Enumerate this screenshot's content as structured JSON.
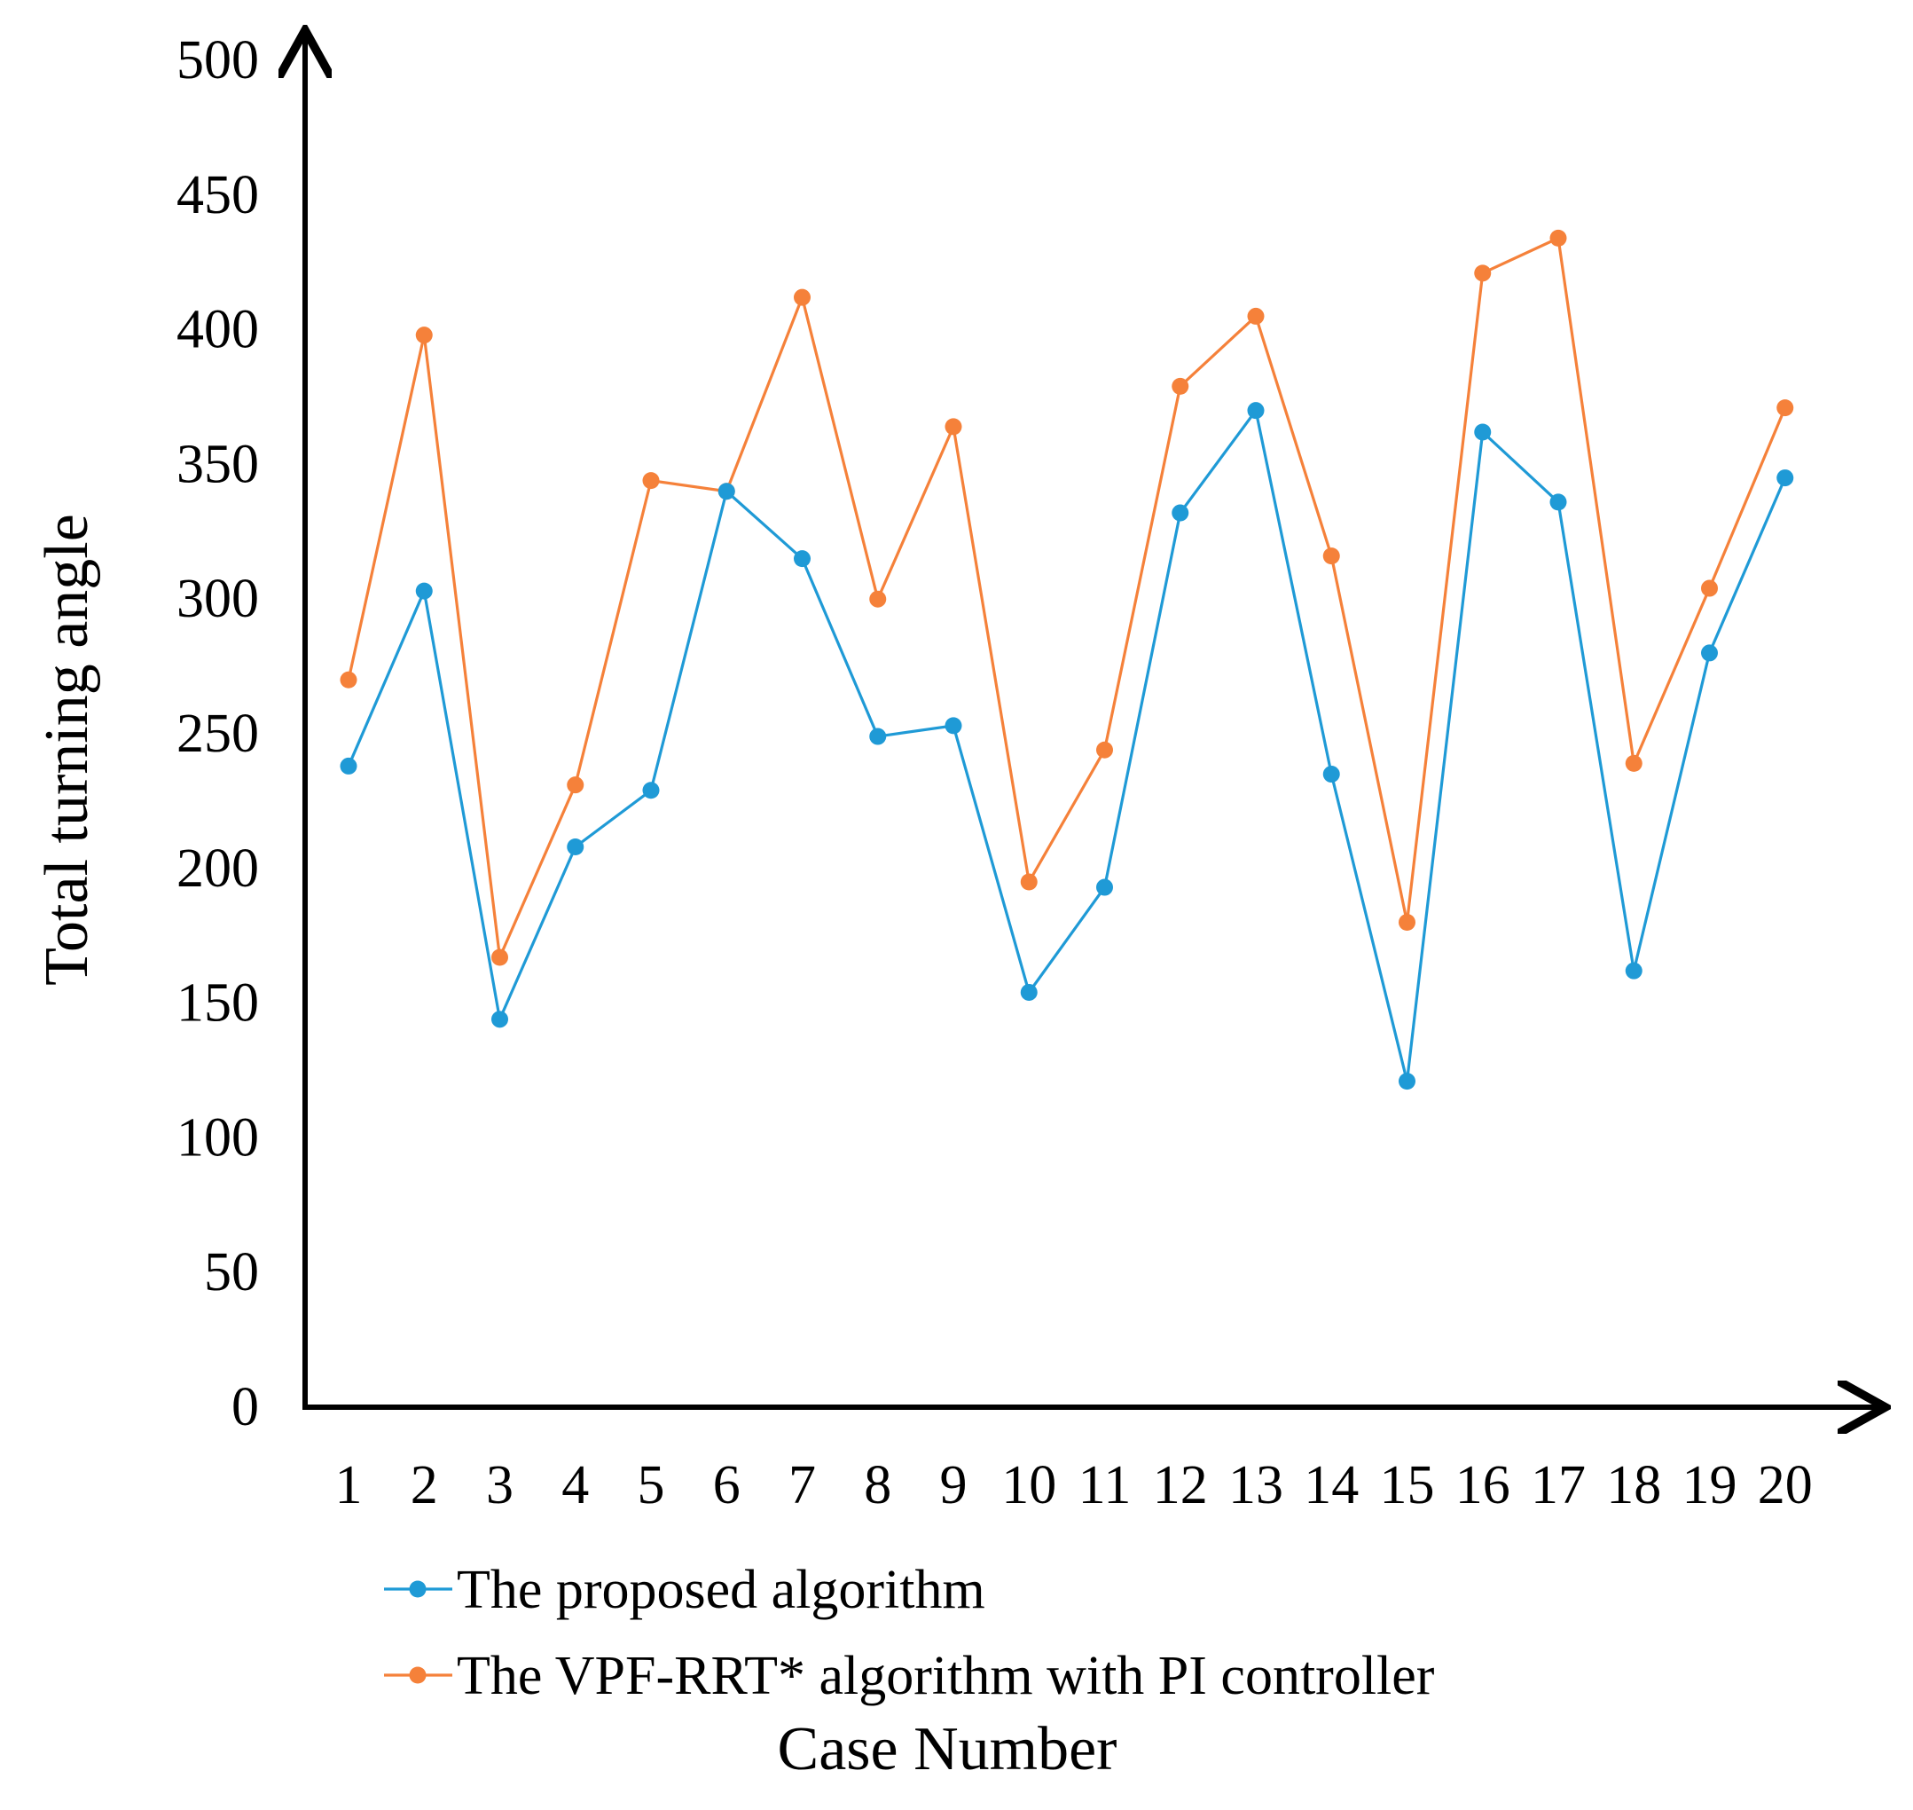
{
  "chart_data": {
    "type": "line",
    "title": "",
    "xlabel": "Case Number",
    "ylabel": "Total turning angle",
    "categories": [
      "1",
      "2",
      "3",
      "4",
      "5",
      "6",
      "7",
      "8",
      "9",
      "10",
      "11",
      "12",
      "13",
      "14",
      "15",
      "16",
      "17",
      "18",
      "19",
      "20"
    ],
    "ylim": [
      0,
      500
    ],
    "yticks": [
      "0",
      "50",
      "100",
      "150",
      "200",
      "250",
      "300",
      "350",
      "400",
      "450",
      "500"
    ],
    "grid": false,
    "legend_position": "bottom",
    "series": [
      {
        "name": "The proposed algorithm",
        "color": "#1f9ad6",
        "values": [
          238,
          303,
          144,
          208,
          229,
          340,
          315,
          249,
          253,
          154,
          193,
          332,
          370,
          235,
          121,
          362,
          336,
          162,
          280,
          345
        ]
      },
      {
        "name": "The VPF-RRT* algorithm with PI controller",
        "color": "#f5813a",
        "values": [
          270,
          398,
          167,
          231,
          344,
          340,
          412,
          300,
          364,
          195,
          244,
          379,
          405,
          316,
          180,
          421,
          434,
          239,
          304,
          371
        ]
      }
    ]
  }
}
